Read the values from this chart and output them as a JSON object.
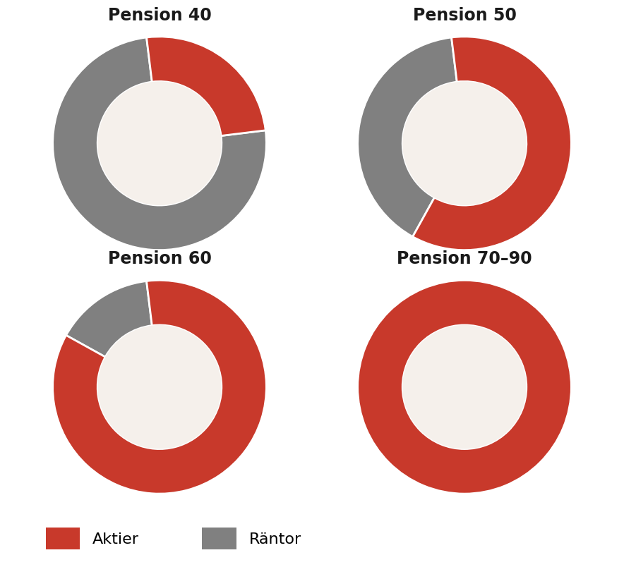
{
  "charts": [
    {
      "title": "Pension 40",
      "aktier": 25,
      "rantor": 75
    },
    {
      "title": "Pension 50",
      "aktier": 60,
      "rantor": 40
    },
    {
      "title": "Pension 60",
      "aktier": 85,
      "rantor": 15
    },
    {
      "title": "Pension 70–90",
      "aktier": 100,
      "rantor": 0
    }
  ],
  "color_aktier": "#C8392B",
  "color_rantor": "#808080",
  "color_center": "#F5F0EB",
  "background_color": "#FFFFFF",
  "title_fontsize": 17,
  "legend_fontsize": 16,
  "donut_width": 0.42,
  "start_angle": 97
}
